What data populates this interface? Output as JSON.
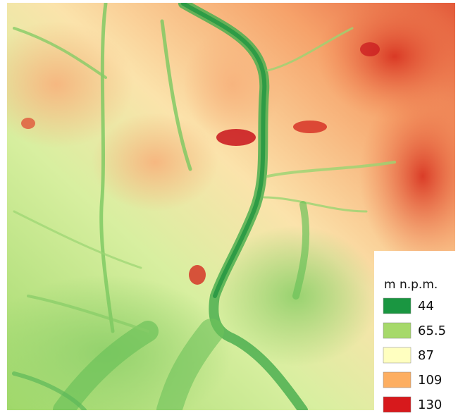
{
  "legend": {
    "title": "m n.p.m.",
    "items": [
      {
        "value": 44,
        "color": "#1a9641"
      },
      {
        "value": 65.5,
        "color": "#a6d96a"
      },
      {
        "value": 87,
        "color": "#ffffc0"
      },
      {
        "value": 109,
        "color": "#fdae61"
      },
      {
        "value": 130,
        "color": "#d7191c"
      }
    ]
  }
}
